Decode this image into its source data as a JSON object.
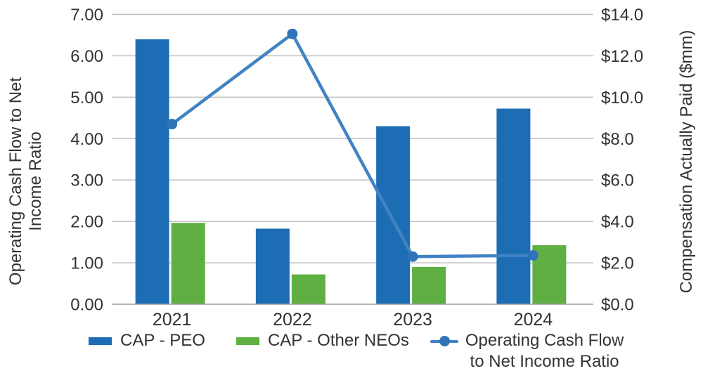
{
  "chart_data": {
    "type": "combo-bar-line",
    "categories": [
      "2021",
      "2022",
      "2023",
      "2024"
    ],
    "series": [
      {
        "name": "CAP - PEO",
        "type": "bar",
        "axis": "right",
        "color": "#1D6DB5",
        "values": [
          12.8,
          3.65,
          8.6,
          9.45
        ]
      },
      {
        "name": "CAP - Other NEOs",
        "type": "bar",
        "axis": "right",
        "color": "#5FAF43",
        "values": [
          3.93,
          1.44,
          1.8,
          2.85
        ]
      },
      {
        "name": "Operating Cash Flow to Net Income Ratio",
        "type": "line",
        "axis": "left",
        "color": "#4182C4",
        "marker_color": "#2F74B9",
        "values": [
          4.35,
          6.53,
          1.15,
          1.18
        ]
      }
    ],
    "left_axis": {
      "title_lines": [
        "Operating Cash Flow to Net",
        "Income Ratio"
      ],
      "min": 0,
      "max": 7,
      "step": 1,
      "tick_labels": [
        "0.00",
        "1.00",
        "2.00",
        "3.00",
        "4.00",
        "5.00",
        "6.00",
        "7.00"
      ]
    },
    "right_axis": {
      "title": "Compensation Actually Paid ($mm)",
      "min": 0,
      "max": 14,
      "step": 2,
      "tick_labels": [
        "$0.0",
        "$2.0",
        "$4.0",
        "$6.0",
        "$8.0",
        "$10.0",
        "$12.0",
        "$14.0"
      ]
    },
    "grid": true,
    "legend_position": "bottom"
  },
  "legend": {
    "items": [
      {
        "swatch": "bar",
        "color": "#1D6DB5",
        "lines": [
          "CAP - PEO"
        ]
      },
      {
        "swatch": "bar",
        "color": "#5FAF43",
        "lines": [
          "CAP - Other NEOs"
        ]
      },
      {
        "swatch": "line-marker",
        "color": "#4182C4",
        "marker_color": "#2F74B9",
        "lines": [
          "Operating Cash Flow",
          "to Net Income Ratio"
        ]
      }
    ]
  },
  "colors": {
    "grid": "#BDBDBD",
    "axis_line": "#9E9E9E",
    "text": "#333333",
    "background": "#FFFFFF"
  }
}
